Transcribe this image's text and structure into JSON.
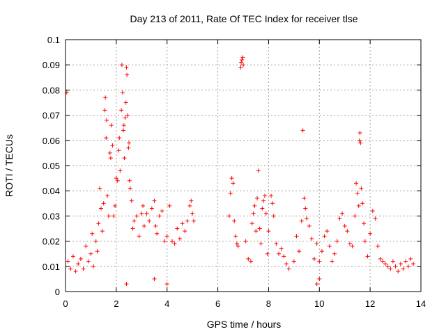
{
  "chart_data": {
    "type": "scatter",
    "title": "Day 213 of 2011, Rate Of TEC Index for receiver tlse",
    "xlabel": "GPS time / hours",
    "ylabel": "ROTI / TECUs",
    "xlim": [
      0,
      14
    ],
    "ylim": [
      0,
      0.1
    ],
    "xticks": [
      0,
      2,
      4,
      6,
      8,
      10,
      12,
      14
    ],
    "yticks": [
      0,
      0.01,
      0.02,
      0.03,
      0.04,
      0.05,
      0.06,
      0.07,
      0.08,
      0.09,
      0.1
    ],
    "xtick_labels": [
      "0",
      "2",
      "4",
      "6",
      "8",
      "10",
      "12",
      "14"
    ],
    "ytick_labels": [
      "0",
      "0.01",
      "0.02",
      "0.03",
      "0.04",
      "0.05",
      "0.06",
      "0.07",
      "0.08",
      "0.09",
      "0.1"
    ],
    "grid": true,
    "marker": "+",
    "color": "#ff0000",
    "points": [
      [
        0.05,
        0.079
      ],
      [
        0.1,
        0.012
      ],
      [
        0.2,
        0.009
      ],
      [
        0.3,
        0.014
      ],
      [
        0.4,
        0.008
      ],
      [
        0.5,
        0.011
      ],
      [
        0.6,
        0.013
      ],
      [
        0.7,
        0.009
      ],
      [
        0.8,
        0.018
      ],
      [
        0.9,
        0.012
      ],
      [
        1.0,
        0.015
      ],
      [
        1.05,
        0.023
      ],
      [
        1.1,
        0.01
      ],
      [
        1.2,
        0.02
      ],
      [
        1.25,
        0.016
      ],
      [
        1.3,
        0.027
      ],
      [
        1.35,
        0.041
      ],
      [
        1.4,
        0.033
      ],
      [
        1.45,
        0.024
      ],
      [
        1.5,
        0.035
      ],
      [
        1.55,
        0.072
      ],
      [
        1.57,
        0.077
      ],
      [
        1.6,
        0.061
      ],
      [
        1.62,
        0.068
      ],
      [
        1.65,
        0.038
      ],
      [
        1.7,
        0.03
      ],
      [
        1.75,
        0.055
      ],
      [
        1.78,
        0.053
      ],
      [
        1.8,
        0.066
      ],
      [
        1.85,
        0.058
      ],
      [
        1.9,
        0.03
      ],
      [
        1.95,
        0.034
      ],
      [
        2.0,
        0.045
      ],
      [
        2.05,
        0.044
      ],
      [
        2.1,
        0.056
      ],
      [
        2.12,
        0.061
      ],
      [
        2.15,
        0.048
      ],
      [
        2.2,
        0.072
      ],
      [
        2.22,
        0.09
      ],
      [
        2.25,
        0.079
      ],
      [
        2.28,
        0.064
      ],
      [
        2.3,
        0.066
      ],
      [
        2.32,
        0.053
      ],
      [
        2.35,
        0.069
      ],
      [
        2.38,
        0.075
      ],
      [
        2.4,
        0.089
      ],
      [
        2.42,
        0.086
      ],
      [
        2.45,
        0.07
      ],
      [
        2.48,
        0.057
      ],
      [
        2.5,
        0.059
      ],
      [
        2.52,
        0.044
      ],
      [
        2.55,
        0.041
      ],
      [
        2.6,
        0.036
      ],
      [
        2.65,
        0.025
      ],
      [
        2.7,
        0.028
      ],
      [
        2.8,
        0.03
      ],
      [
        2.9,
        0.022
      ],
      [
        3.0,
        0.031
      ],
      [
        3.05,
        0.034
      ],
      [
        3.1,
        0.026
      ],
      [
        3.2,
        0.031
      ],
      [
        3.3,
        0.028
      ],
      [
        3.4,
        0.033
      ],
      [
        3.5,
        0.036
      ],
      [
        3.55,
        0.026
      ],
      [
        3.6,
        0.023
      ],
      [
        3.7,
        0.03
      ],
      [
        3.8,
        0.032
      ],
      [
        3.9,
        0.02
      ],
      [
        4.0,
        0.022
      ],
      [
        4.1,
        0.034
      ],
      [
        4.2,
        0.02
      ],
      [
        4.3,
        0.019
      ],
      [
        4.4,
        0.025
      ],
      [
        4.5,
        0.021
      ],
      [
        4.6,
        0.027
      ],
      [
        4.7,
        0.024
      ],
      [
        4.8,
        0.028
      ],
      [
        4.9,
        0.034
      ],
      [
        4.95,
        0.036
      ],
      [
        5.0,
        0.031
      ],
      [
        5.05,
        0.028
      ],
      [
        2.4,
        0.003
      ],
      [
        3.5,
        0.005
      ],
      [
        4.0,
        0.003
      ],
      [
        6.45,
        0.03
      ],
      [
        6.5,
        0.039
      ],
      [
        6.55,
        0.045
      ],
      [
        6.6,
        0.043
      ],
      [
        6.65,
        0.028
      ],
      [
        6.7,
        0.022
      ],
      [
        6.75,
        0.019
      ],
      [
        6.8,
        0.018
      ],
      [
        6.9,
        0.089
      ],
      [
        6.92,
        0.091
      ],
      [
        6.95,
        0.092
      ],
      [
        6.98,
        0.093
      ],
      [
        7.0,
        0.09
      ],
      [
        7.1,
        0.02
      ],
      [
        7.2,
        0.013
      ],
      [
        7.3,
        0.012
      ],
      [
        7.35,
        0.027
      ],
      [
        7.4,
        0.031
      ],
      [
        7.45,
        0.034
      ],
      [
        7.5,
        0.024
      ],
      [
        7.55,
        0.037
      ],
      [
        7.6,
        0.048
      ],
      [
        7.65,
        0.025
      ],
      [
        7.7,
        0.019
      ],
      [
        7.75,
        0.033
      ],
      [
        7.8,
        0.036
      ],
      [
        7.85,
        0.038
      ],
      [
        7.9,
        0.031
      ],
      [
        7.95,
        0.015
      ],
      [
        8.0,
        0.024
      ],
      [
        8.1,
        0.038
      ],
      [
        8.15,
        0.035
      ],
      [
        8.2,
        0.03
      ],
      [
        8.3,
        0.019
      ],
      [
        8.4,
        0.015
      ],
      [
        8.5,
        0.017
      ],
      [
        8.6,
        0.014
      ],
      [
        8.7,
        0.011
      ],
      [
        8.8,
        0.009
      ],
      [
        9.0,
        0.012
      ],
      [
        9.1,
        0.022
      ],
      [
        9.2,
        0.016
      ],
      [
        9.3,
        0.028
      ],
      [
        9.35,
        0.064
      ],
      [
        9.4,
        0.037
      ],
      [
        9.45,
        0.033
      ],
      [
        9.5,
        0.029
      ],
      [
        9.6,
        0.026
      ],
      [
        9.7,
        0.021
      ],
      [
        9.8,
        0.013
      ],
      [
        9.9,
        0.019
      ],
      [
        10.0,
        0.012
      ],
      [
        10.1,
        0.016
      ],
      [
        10.2,
        0.022
      ],
      [
        10.3,
        0.024
      ],
      [
        10.4,
        0.018
      ],
      [
        10.5,
        0.012
      ],
      [
        10.6,
        0.015
      ],
      [
        10.7,
        0.02
      ],
      [
        10.8,
        0.029
      ],
      [
        10.9,
        0.031
      ],
      [
        11.0,
        0.026
      ],
      [
        11.1,
        0.024
      ],
      [
        11.2,
        0.019
      ],
      [
        11.3,
        0.018
      ],
      [
        11.4,
        0.03
      ],
      [
        11.45,
        0.043
      ],
      [
        11.5,
        0.039
      ],
      [
        11.55,
        0.034
      ],
      [
        11.58,
        0.06
      ],
      [
        11.6,
        0.063
      ],
      [
        11.62,
        0.059
      ],
      [
        11.65,
        0.041
      ],
      [
        11.7,
        0.035
      ],
      [
        11.75,
        0.027
      ],
      [
        11.8,
        0.02
      ],
      [
        11.9,
        0.014
      ],
      [
        12.0,
        0.023
      ],
      [
        12.1,
        0.032
      ],
      [
        12.2,
        0.029
      ],
      [
        12.3,
        0.018
      ],
      [
        12.4,
        0.013
      ],
      [
        12.5,
        0.012
      ],
      [
        12.6,
        0.011
      ],
      [
        12.7,
        0.01
      ],
      [
        12.8,
        0.009
      ],
      [
        12.9,
        0.012
      ],
      [
        13.0,
        0.01
      ],
      [
        13.1,
        0.008
      ],
      [
        13.2,
        0.011
      ],
      [
        13.3,
        0.009
      ],
      [
        13.4,
        0.012
      ],
      [
        13.5,
        0.01
      ],
      [
        13.6,
        0.013
      ],
      [
        13.7,
        0.011
      ],
      [
        9.9,
        0.003
      ],
      [
        10.0,
        0.005
      ]
    ]
  }
}
